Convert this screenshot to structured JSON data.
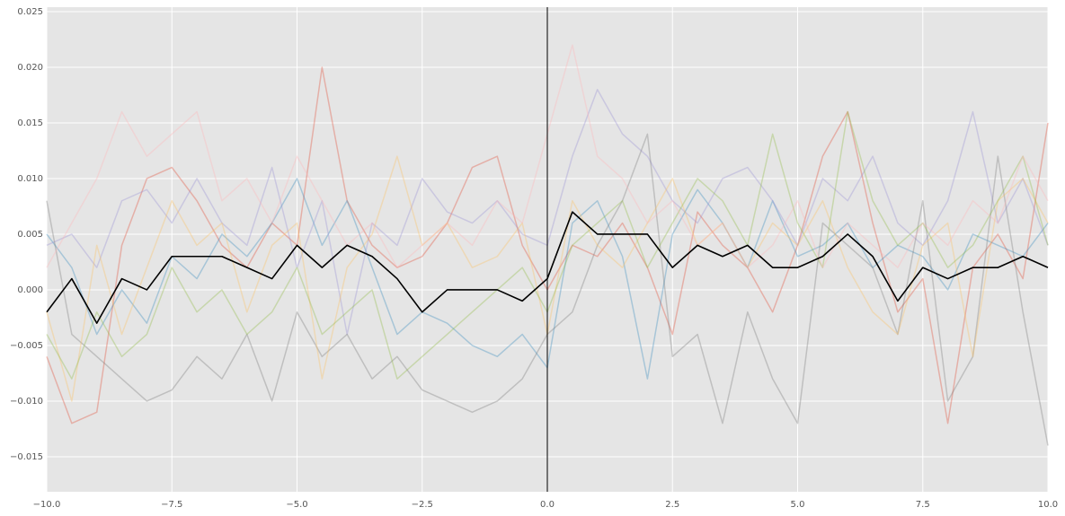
{
  "chart_data": {
    "type": "line",
    "x": [
      -10,
      -9.5,
      -9,
      -8.5,
      -8,
      -7.5,
      -7,
      -6.5,
      -6,
      -5.5,
      -5,
      -4.5,
      -4,
      -3.5,
      -3,
      -2.5,
      -2,
      -1.5,
      -1,
      -0.5,
      0,
      0.5,
      1,
      1.5,
      2,
      2.5,
      3,
      3.5,
      4,
      4.5,
      5,
      5.5,
      6,
      6.5,
      7,
      7.5,
      8,
      8.5,
      9,
      9.5,
      10
    ],
    "series": [
      {
        "color": "#E24A33",
        "opacity": 0.35,
        "values": [
          -0.006,
          -0.012,
          -0.011,
          0.004,
          0.01,
          0.011,
          0.008,
          0.004,
          0.002,
          0.006,
          0.004,
          0.02,
          0.008,
          0.004,
          0.002,
          0.003,
          0.006,
          0.011,
          0.012,
          0.004,
          0.0,
          0.004,
          0.003,
          0.006,
          0.002,
          -0.004,
          0.007,
          0.004,
          0.002,
          -0.002,
          0.004,
          0.012,
          0.016,
          0.006,
          -0.002,
          0.001,
          -0.012,
          0.002,
          0.005,
          0.001,
          0.015
        ]
      },
      {
        "color": "#348ABD",
        "opacity": 0.35,
        "values": [
          0.005,
          0.002,
          -0.004,
          0.0,
          -0.003,
          0.003,
          0.001,
          0.005,
          0.003,
          0.006,
          0.01,
          0.004,
          0.008,
          0.002,
          -0.004,
          -0.002,
          -0.003,
          -0.005,
          -0.006,
          -0.004,
          -0.007,
          0.006,
          0.008,
          0.003,
          -0.008,
          0.005,
          0.009,
          0.006,
          0.002,
          0.008,
          0.003,
          0.004,
          0.006,
          0.002,
          0.004,
          0.003,
          0.0,
          0.005,
          0.004,
          0.003,
          0.006
        ]
      },
      {
        "color": "#988ED5",
        "opacity": 0.35,
        "values": [
          0.004,
          0.005,
          0.002,
          0.008,
          0.009,
          0.006,
          0.01,
          0.006,
          0.004,
          0.011,
          0.002,
          0.008,
          -0.004,
          0.006,
          0.004,
          0.01,
          0.007,
          0.006,
          0.008,
          0.005,
          0.004,
          0.012,
          0.018,
          0.014,
          0.012,
          0.008,
          0.006,
          0.01,
          0.011,
          0.008,
          0.004,
          0.01,
          0.008,
          0.012,
          0.006,
          0.004,
          0.008,
          0.016,
          0.006,
          0.01,
          0.004
        ]
      },
      {
        "color": "#777777",
        "opacity": 0.35,
        "values": [
          0.008,
          -0.004,
          -0.006,
          -0.008,
          -0.01,
          -0.009,
          -0.006,
          -0.008,
          -0.004,
          -0.01,
          -0.002,
          -0.006,
          -0.004,
          -0.008,
          -0.006,
          -0.009,
          -0.01,
          -0.011,
          -0.01,
          -0.008,
          -0.004,
          -0.002,
          0.004,
          0.008,
          0.014,
          -0.006,
          -0.004,
          -0.012,
          -0.002,
          -0.008,
          -0.012,
          0.006,
          0.004,
          0.002,
          -0.004,
          0.008,
          -0.01,
          -0.006,
          0.012,
          -0.002,
          -0.014
        ]
      },
      {
        "color": "#FBC15E",
        "opacity": 0.35,
        "values": [
          -0.002,
          -0.01,
          0.004,
          -0.004,
          0.002,
          0.008,
          0.004,
          0.006,
          -0.002,
          0.004,
          0.006,
          -0.008,
          0.002,
          0.005,
          0.012,
          0.004,
          0.006,
          0.002,
          0.003,
          0.006,
          -0.004,
          0.008,
          0.004,
          0.002,
          0.006,
          0.01,
          0.004,
          0.006,
          0.002,
          0.006,
          0.004,
          0.008,
          0.002,
          -0.002,
          -0.004,
          0.004,
          0.006,
          -0.006,
          0.008,
          0.01,
          0.006
        ]
      },
      {
        "color": "#8EBA42",
        "opacity": 0.35,
        "values": [
          -0.004,
          -0.008,
          -0.002,
          -0.006,
          -0.004,
          0.002,
          -0.002,
          0.0,
          -0.004,
          -0.002,
          0.002,
          -0.004,
          -0.002,
          0.0,
          -0.008,
          -0.006,
          -0.004,
          -0.002,
          0.0,
          0.002,
          -0.002,
          0.004,
          0.006,
          0.008,
          0.002,
          0.006,
          0.01,
          0.008,
          0.004,
          0.014,
          0.006,
          0.002,
          0.016,
          0.008,
          0.004,
          0.006,
          0.002,
          0.004,
          0.008,
          0.012,
          0.004
        ]
      },
      {
        "color": "#FFB5B8",
        "opacity": 0.35,
        "values": [
          0.002,
          0.006,
          0.01,
          0.016,
          0.012,
          0.014,
          0.016,
          0.008,
          0.01,
          0.006,
          0.012,
          0.008,
          0.004,
          0.006,
          0.002,
          0.004,
          0.006,
          0.004,
          0.008,
          0.006,
          0.014,
          0.022,
          0.012,
          0.01,
          0.006,
          0.008,
          0.004,
          0.006,
          0.002,
          0.004,
          0.008,
          0.002,
          0.006,
          0.004,
          0.002,
          0.006,
          0.004,
          0.008,
          0.006,
          0.012,
          0.008
        ]
      },
      {
        "color": "#000000",
        "opacity": 1,
        "values": [
          -0.002,
          0.001,
          -0.003,
          0.001,
          0.0,
          0.003,
          0.003,
          0.003,
          0.002,
          0.001,
          0.004,
          0.002,
          0.004,
          0.003,
          0.001,
          -0.002,
          0.0,
          0.0,
          0.0,
          -0.001,
          0.001,
          0.007,
          0.005,
          0.005,
          0.005,
          0.002,
          0.004,
          0.003,
          0.004,
          0.002,
          0.002,
          0.003,
          0.005,
          0.003,
          -0.001,
          0.002,
          0.001,
          0.002,
          0.002,
          0.003,
          0.002
        ]
      }
    ],
    "vline": 0,
    "xlim": [
      -10,
      10
    ],
    "xticks": [
      {
        "value": -10,
        "label": "−10.0"
      },
      {
        "value": -7.5,
        "label": "−7.5"
      },
      {
        "value": -5,
        "label": "−5.0"
      },
      {
        "value": -2.5,
        "label": "−2.5"
      },
      {
        "value": 0,
        "label": "0.0"
      },
      {
        "value": 2.5,
        "label": "2.5"
      },
      {
        "value": 5,
        "label": "5.0"
      },
      {
        "value": 7.5,
        "label": "7.5"
      },
      {
        "value": 10,
        "label": "10.0"
      }
    ],
    "ylim": [
      -0.01815,
      0.0254
    ],
    "yticks": [
      {
        "value": -0.015,
        "label": "−0.015"
      },
      {
        "value": -0.01,
        "label": "−0.010"
      },
      {
        "value": -0.005,
        "label": "−0.005"
      },
      {
        "value": 0,
        "label": "0.000"
      },
      {
        "value": 0.005,
        "label": "0.005"
      },
      {
        "value": 0.01,
        "label": "0.010"
      },
      {
        "value": 0.015,
        "label": "0.015"
      },
      {
        "value": 0.02,
        "label": "0.020"
      },
      {
        "value": 0.025,
        "label": "0.025"
      }
    ],
    "grid": true,
    "background": "#E5E5E5"
  }
}
